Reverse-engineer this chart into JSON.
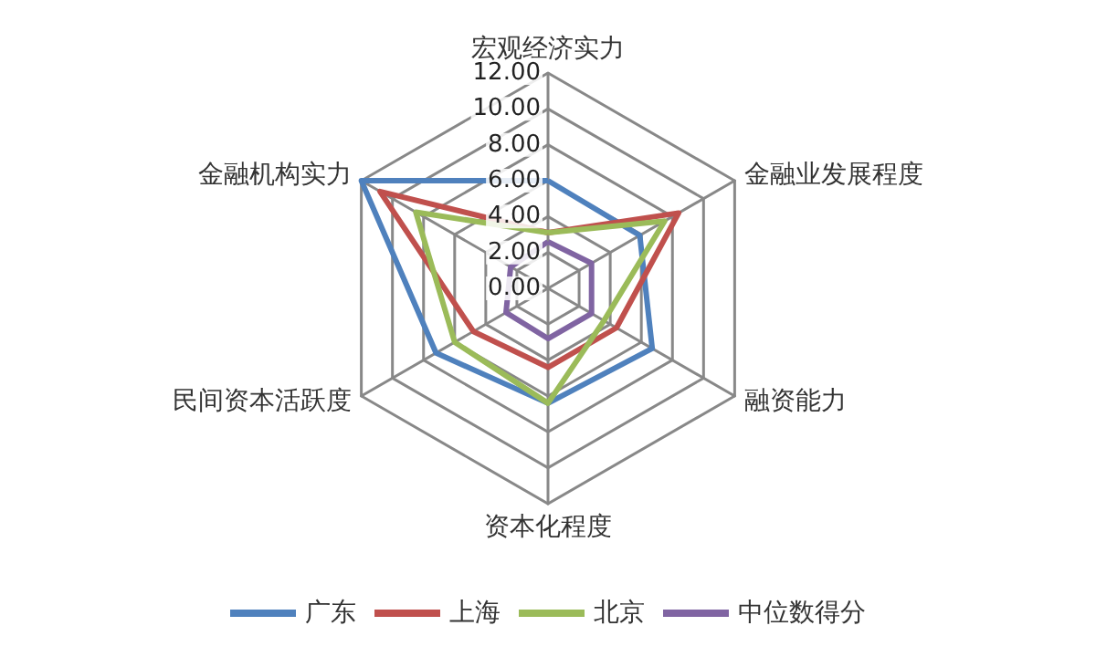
{
  "chart_data": {
    "type": "radar",
    "categories": [
      "宏观经济实力",
      "金融业发展程度",
      "融资能力",
      "资本化程度",
      "民间资本活跃度",
      "金融机构实力"
    ],
    "series": [
      {
        "name": "广东",
        "color": "#4f81bd",
        "values": [
          6.0,
          5.9,
          6.7,
          6.4,
          7.2,
          12.0
        ]
      },
      {
        "name": "上海",
        "color": "#c0504d",
        "values": [
          3.1,
          8.4,
          4.4,
          4.4,
          4.8,
          10.8
        ]
      },
      {
        "name": "北京",
        "color": "#9bbb59",
        "values": [
          3.1,
          7.5,
          3.6,
          6.4,
          6.0,
          8.5
        ]
      },
      {
        "name": "中位数得分",
        "color": "#8064a2",
        "values": [
          2.6,
          2.8,
          2.8,
          2.8,
          2.7,
          2.4
        ]
      }
    ],
    "ylim": [
      0,
      12
    ],
    "yticks": [
      {
        "value": 0,
        "label": "0.00"
      },
      {
        "value": 2,
        "label": "2.00"
      },
      {
        "value": 4,
        "label": "4.00"
      },
      {
        "value": 6,
        "label": "6.00"
      },
      {
        "value": 8,
        "label": "8.00"
      },
      {
        "value": 10,
        "label": "10.00"
      },
      {
        "value": 12,
        "label": "12.00"
      }
    ],
    "grid": true,
    "legend": "bottom",
    "marker": "none",
    "line_style": "solid"
  }
}
